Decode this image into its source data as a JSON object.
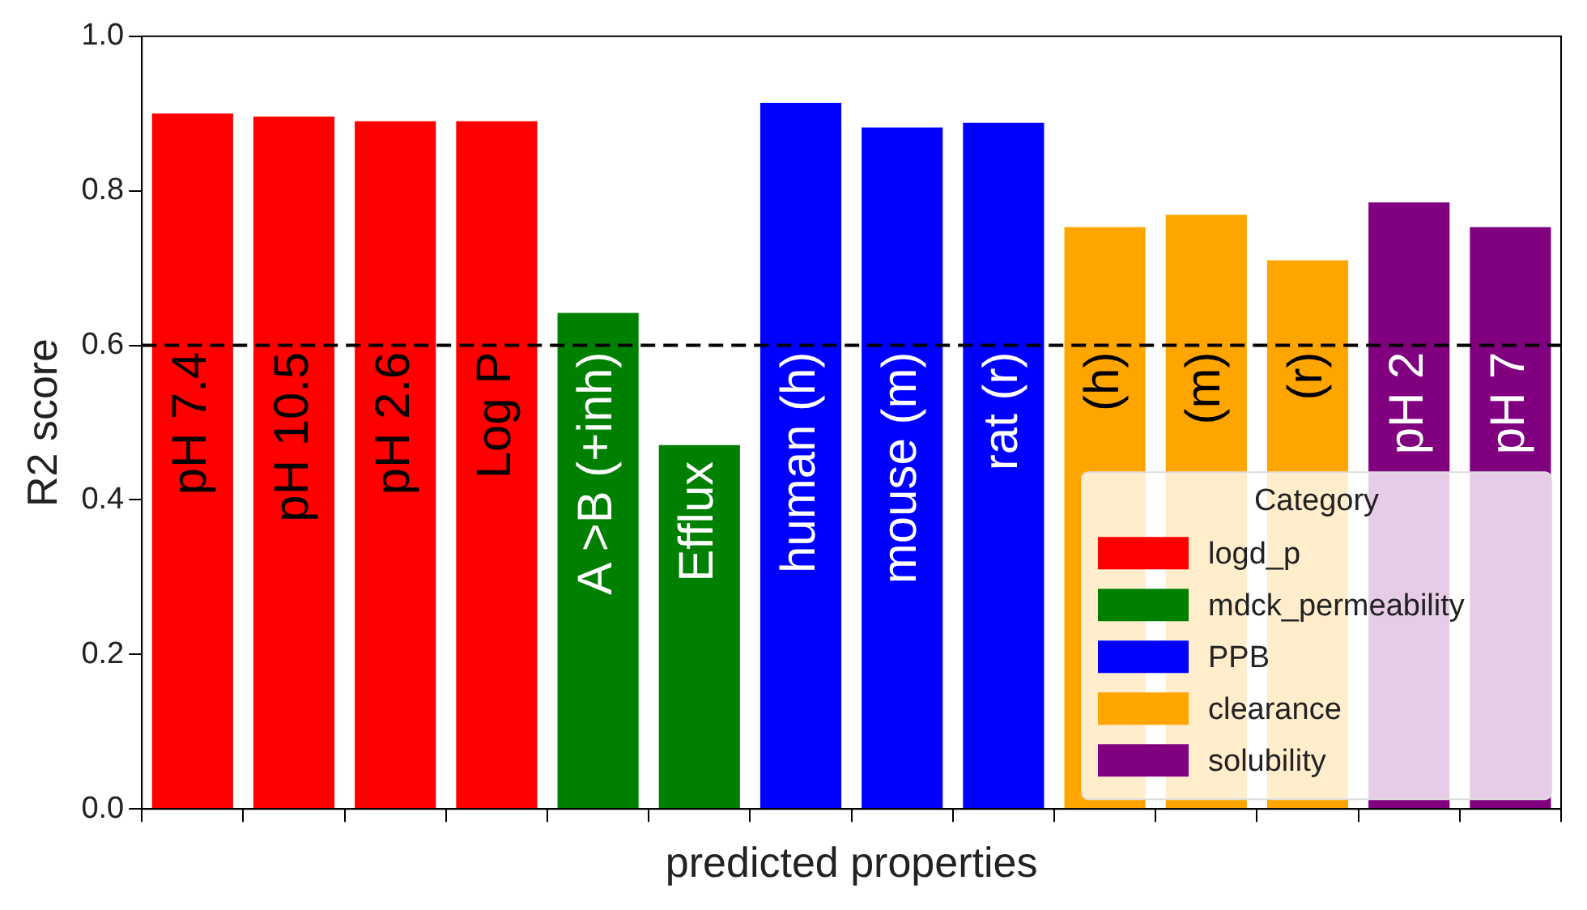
{
  "chart_data": {
    "type": "bar",
    "xlabel": "predicted properties",
    "ylabel": "R2 score",
    "legend_title": "Category",
    "categories": [
      "pH 7.4",
      "pH 10.5",
      "pH 2.6",
      "Log P",
      "A >B (+inh)",
      "Efflux",
      "human (h)",
      "mouse (m)",
      "rat (r)",
      "(h)",
      "(m)",
      "(r)",
      "pH 2",
      "pH 7"
    ],
    "series": [
      {
        "name": "logd_p",
        "color": "#ff0000",
        "values": [
          0.9,
          0.896,
          0.89,
          0.89,
          null,
          null,
          null,
          null,
          null,
          null,
          null,
          null,
          null,
          null
        ]
      },
      {
        "name": "mdck_permeability",
        "color": "#008000",
        "values": [
          null,
          null,
          null,
          null,
          0.642,
          0.471,
          null,
          null,
          null,
          null,
          null,
          null,
          null,
          null
        ]
      },
      {
        "name": "PPB",
        "color": "#0000ff",
        "values": [
          null,
          null,
          null,
          null,
          null,
          null,
          0.914,
          0.882,
          0.888,
          null,
          null,
          null,
          null,
          null
        ]
      },
      {
        "name": "clearance",
        "color": "#ffa500",
        "values": [
          null,
          null,
          null,
          null,
          null,
          null,
          null,
          null,
          null,
          0.753,
          0.769,
          0.71,
          null,
          null
        ]
      },
      {
        "name": "solubility",
        "color": "#800080",
        "values": [
          null,
          null,
          null,
          null,
          null,
          null,
          null,
          null,
          null,
          null,
          null,
          null,
          0.785,
          0.753
        ]
      }
    ],
    "ylim": [
      0,
      1
    ],
    "yticks": [
      {
        "value": 0,
        "label": "0.0"
      },
      {
        "value": 0.2,
        "label": "0.2"
      },
      {
        "value": 0.4,
        "label": "0.4"
      },
      {
        "value": 0.6,
        "label": "0.6"
      },
      {
        "value": 0.8,
        "label": "0.8"
      },
      {
        "value": 1,
        "label": "1.0"
      }
    ],
    "ref_lines": [
      {
        "axis": "y",
        "value": 0.6,
        "color": "#000000",
        "line_style": "dashed"
      }
    ],
    "tick_labels": "y",
    "legend": "bottom right",
    "grid": false
  }
}
